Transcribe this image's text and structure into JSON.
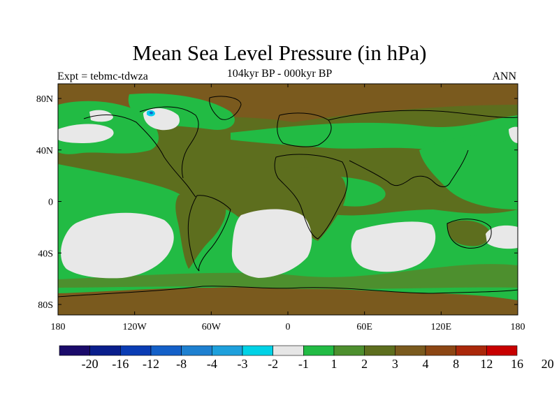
{
  "title": "Mean Sea Level Pressure (in hPa)",
  "left_label": "Expt = tebmc-tdwza",
  "center_label": "104kyr BP - 000kyr BP",
  "right_label": "ANN",
  "colors": {
    "land_brown": "#7a5a1e",
    "dark_olive": "#5d6e1e",
    "olive_green": "#4d8f2e",
    "bright_green": "#22bb44",
    "white_grey": "#e8e8e8",
    "cyan": "#00ccee",
    "frame": "#000000"
  },
  "map": {
    "x_ticks": [
      "180",
      "120W",
      "60W",
      "0",
      "60E",
      "120E",
      "180"
    ],
    "y_ticks": [
      "80N",
      "40N",
      "0",
      "40S",
      "80S"
    ]
  },
  "colorbar": {
    "colors": [
      "#1a0a6a",
      "#0a1e8c",
      "#0a3cb4",
      "#1460c8",
      "#1e80d0",
      "#1ea0dc",
      "#00d2e6",
      "#e6e6e6",
      "#22bb44",
      "#4d8f2e",
      "#5d6e1e",
      "#7a5a1e",
      "#8c4614",
      "#aa280a",
      "#c80000"
    ],
    "labels": [
      "-20",
      "-16",
      "-12",
      "-8",
      "-4",
      "-3",
      "-2",
      "-1",
      "1",
      "2",
      "3",
      "4",
      "8",
      "12",
      "16",
      "20"
    ]
  }
}
